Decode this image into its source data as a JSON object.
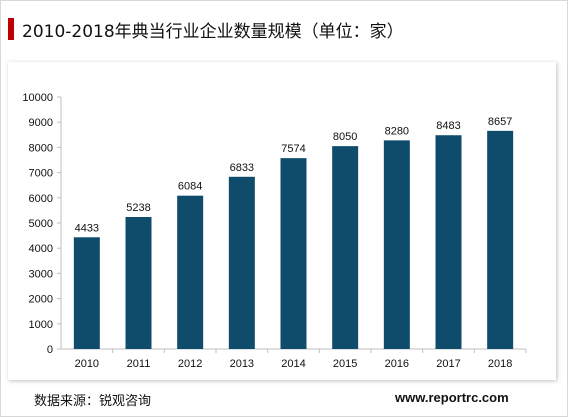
{
  "title": "2010-2018年典当行业企业数量规模（单位：家）",
  "source": "数据来源：锐观咨询",
  "website": "www.reportrc.com",
  "colors": {
    "bar": "#0f4c6c",
    "accent": "#c00000",
    "axis": "#bfbfbf",
    "text": "#111111"
  },
  "chart_data": {
    "type": "bar",
    "categories": [
      "2010",
      "2011",
      "2012",
      "2013",
      "2014",
      "2015",
      "2016",
      "2017",
      "2018"
    ],
    "values": [
      4433,
      5238,
      6084,
      6833,
      7574,
      8050,
      8280,
      8483,
      8657
    ],
    "ylim": [
      0,
      10000
    ],
    "yticks": [
      0,
      1000,
      2000,
      3000,
      4000,
      5000,
      6000,
      7000,
      8000,
      9000,
      10000
    ],
    "grid": false,
    "legend": "none",
    "data_labels": true
  }
}
